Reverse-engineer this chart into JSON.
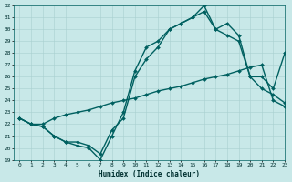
{
  "xlabel": "Humidex (Indice chaleur)",
  "bg_color": "#c8e8e8",
  "line_color": "#006060",
  "grid_color": "#a8d0d0",
  "ylim": [
    19,
    32
  ],
  "xlim": [
    -0.5,
    23
  ],
  "yticks": [
    19,
    20,
    21,
    22,
    23,
    24,
    25,
    26,
    27,
    28,
    29,
    30,
    31,
    32
  ],
  "xticks": [
    0,
    1,
    2,
    3,
    4,
    5,
    6,
    7,
    8,
    9,
    10,
    11,
    12,
    13,
    14,
    15,
    16,
    17,
    18,
    19,
    20,
    21,
    22,
    23
  ],
  "line1_x": [
    0,
    1,
    2,
    3,
    4,
    5,
    6,
    7,
    8,
    9,
    10,
    11,
    12,
    13,
    14,
    15,
    16,
    17,
    18,
    19,
    20,
    21,
    22,
    23
  ],
  "line1_y": [
    22.5,
    22.0,
    22.0,
    22.5,
    22.8,
    23.0,
    23.2,
    23.5,
    23.8,
    24.0,
    24.2,
    24.5,
    24.8,
    25.0,
    25.2,
    25.5,
    25.8,
    26.0,
    26.2,
    26.5,
    26.8,
    27.0,
    24.0,
    23.5
  ],
  "line2_x": [
    0,
    1,
    2,
    3,
    4,
    5,
    6,
    7,
    8,
    9,
    10,
    11,
    12,
    13,
    14,
    15,
    16,
    17,
    18,
    19,
    20,
    21,
    22,
    23
  ],
  "line2_y": [
    22.5,
    22.0,
    21.8,
    21.0,
    20.5,
    20.2,
    20.0,
    19.0,
    21.0,
    23.0,
    26.5,
    28.5,
    29.0,
    30.0,
    30.5,
    31.0,
    32.0,
    30.0,
    30.5,
    29.5,
    26.0,
    25.0,
    24.5,
    23.8
  ],
  "line3_x": [
    0,
    1,
    2,
    3,
    4,
    5,
    6,
    7,
    8,
    9,
    10,
    11,
    12,
    13,
    14,
    15,
    16,
    17,
    18,
    19,
    20,
    21,
    22,
    23
  ],
  "line3_y": [
    22.5,
    22.0,
    21.8,
    21.0,
    20.5,
    20.5,
    20.2,
    19.5,
    21.5,
    22.5,
    26.0,
    27.5,
    28.5,
    30.0,
    30.5,
    31.0,
    31.5,
    30.0,
    29.5,
    29.0,
    26.0,
    26.0,
    25.0,
    28.0
  ],
  "marker": "D",
  "markersize": 2.0,
  "linewidth": 1.0
}
